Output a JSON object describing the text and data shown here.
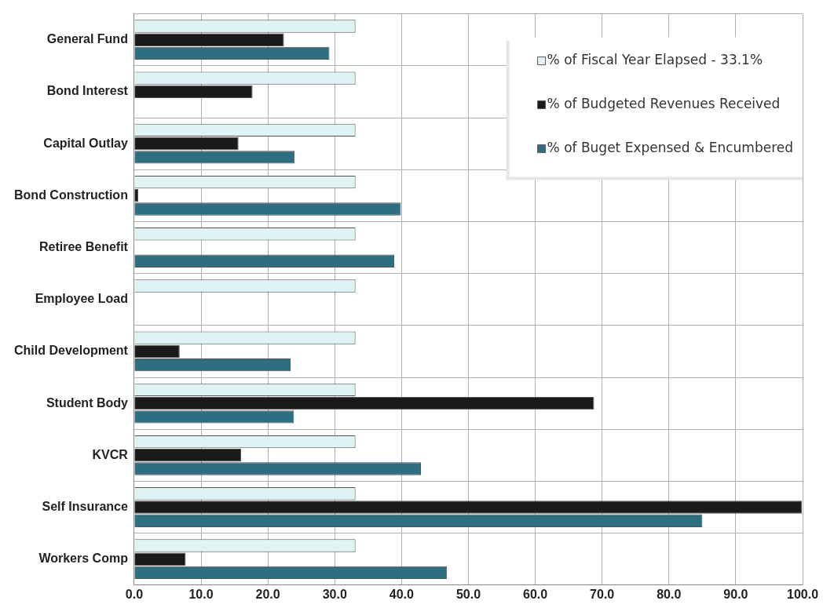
{
  "chart_data": {
    "type": "bar",
    "orientation": "horizontal",
    "categories": [
      "General Fund",
      "Bond Interest",
      "Capital Outlay",
      "Bond Construction",
      "Retiree Benefit",
      "Employee Load",
      "Child Development",
      "Student Body",
      "KVCR",
      "Self Insurance",
      "Workers Comp"
    ],
    "series": [
      {
        "name": "% of Fiscal Year Elapsed - 33.1%",
        "color": "#dff2f4",
        "values": [
          33.1,
          33.1,
          33.1,
          33.1,
          33.1,
          33.1,
          33.1,
          33.1,
          33.1,
          33.1,
          33.1
        ]
      },
      {
        "name": "% of Budgeted Revenues Received",
        "color": "#1a1a1a",
        "values": [
          22.4,
          17.7,
          15.6,
          0.6,
          null,
          null,
          6.8,
          68.8,
          16.0,
          99.9,
          7.7
        ]
      },
      {
        "name": "% of Buget Expensed & Encumbered",
        "color": "#2e6e80",
        "values": [
          29.2,
          null,
          24.0,
          39.9,
          38.9,
          null,
          23.4,
          23.9,
          42.9,
          85.0,
          46.8
        ]
      }
    ],
    "xlim": [
      0,
      100
    ],
    "xticks": [
      {
        "value": 0,
        "label": "0.0"
      },
      {
        "value": 10,
        "label": "10.0"
      },
      {
        "value": 20,
        "label": "20.0"
      },
      {
        "value": 30,
        "label": "30.0"
      },
      {
        "value": 40,
        "label": "40.0"
      },
      {
        "value": 50,
        "label": "50.0"
      },
      {
        "value": 60,
        "label": "60.0"
      },
      {
        "value": 70,
        "label": "70.0"
      },
      {
        "value": 80,
        "label": "80.0"
      },
      {
        "value": 90,
        "label": "90.0"
      },
      {
        "value": 100,
        "label": "100.0"
      }
    ],
    "grid": true,
    "legend": "top right"
  }
}
